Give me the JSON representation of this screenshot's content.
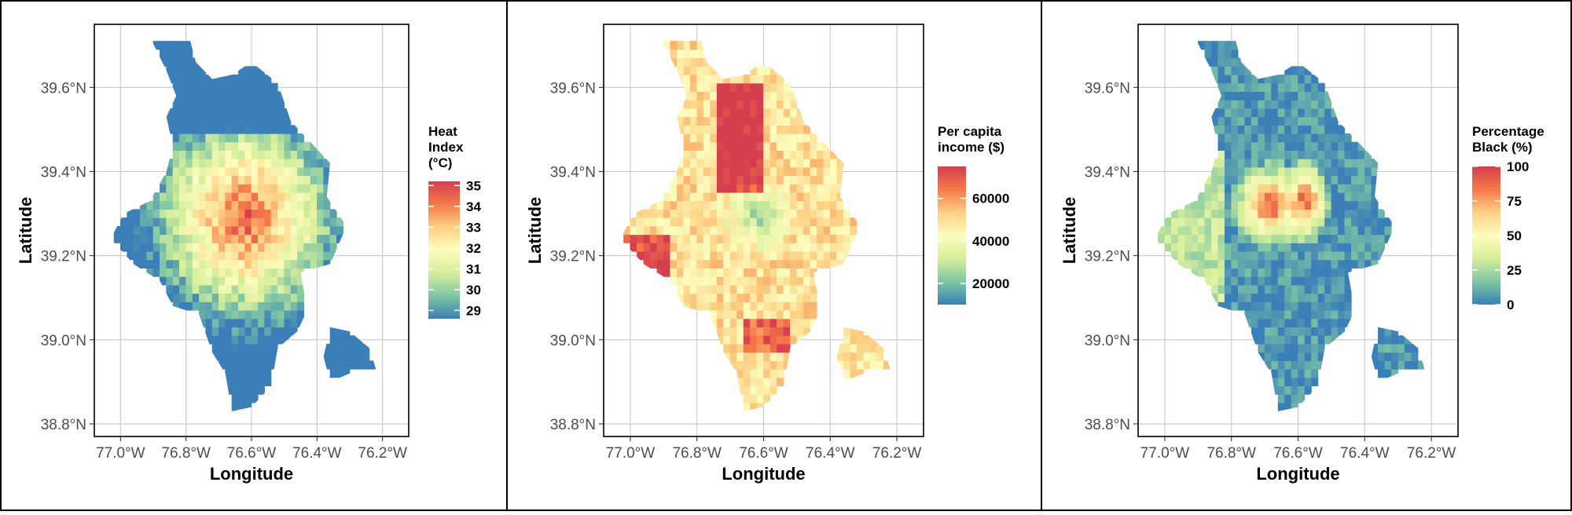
{
  "panels": [
    {
      "name": "heat-index",
      "legend": {
        "title_lines": [
          "Heat",
          "Index",
          "(°C)"
        ],
        "breaks": [
          35,
          34,
          33,
          32,
          31,
          30,
          29
        ],
        "break_labels": [
          "35",
          "34",
          "33",
          "32",
          "31",
          "30",
          "29"
        ],
        "min": 28.6,
        "max": 35.2
      }
    },
    {
      "name": "per-capita-income",
      "legend": {
        "title_lines": [
          "Per capita",
          "income ($)"
        ],
        "breaks": [
          60000,
          40000,
          20000
        ],
        "break_labels": [
          "60000",
          "40000",
          "20000"
        ],
        "min": 10000,
        "max": 75000
      }
    },
    {
      "name": "percentage-black",
      "legend": {
        "title_lines": [
          "Percentage",
          "Black (%)"
        ],
        "breaks": [
          100,
          75,
          50,
          25,
          0
        ],
        "break_labels": [
          "100",
          "75",
          "50",
          "25",
          "0"
        ],
        "min": 0,
        "max": 100
      }
    }
  ],
  "axes": {
    "xlabel": "Longitude",
    "ylabel": "Latitude",
    "x_ticks": [
      -77.0,
      -76.8,
      -76.6,
      -76.4,
      -76.2
    ],
    "x_tick_labels": [
      "77.0°W",
      "76.8°W",
      "76.6°W",
      "76.4°W",
      "76.2°W"
    ],
    "y_ticks": [
      39.6,
      39.4,
      39.2,
      39.0,
      38.8
    ],
    "y_tick_labels": [
      "39.6°N",
      "39.4°N",
      "39.2°N",
      "39.0°N",
      "38.8°N"
    ],
    "xlim": [
      -77.08,
      -76.12
    ],
    "ylim": [
      38.77,
      39.75
    ]
  },
  "colors": {
    "palette": [
      "#3a7fb8",
      "#7fc6a4",
      "#d6ee9b",
      "#fdfdbe",
      "#fdd084",
      "#f67a49",
      "#d53e4f"
    ]
  }
}
